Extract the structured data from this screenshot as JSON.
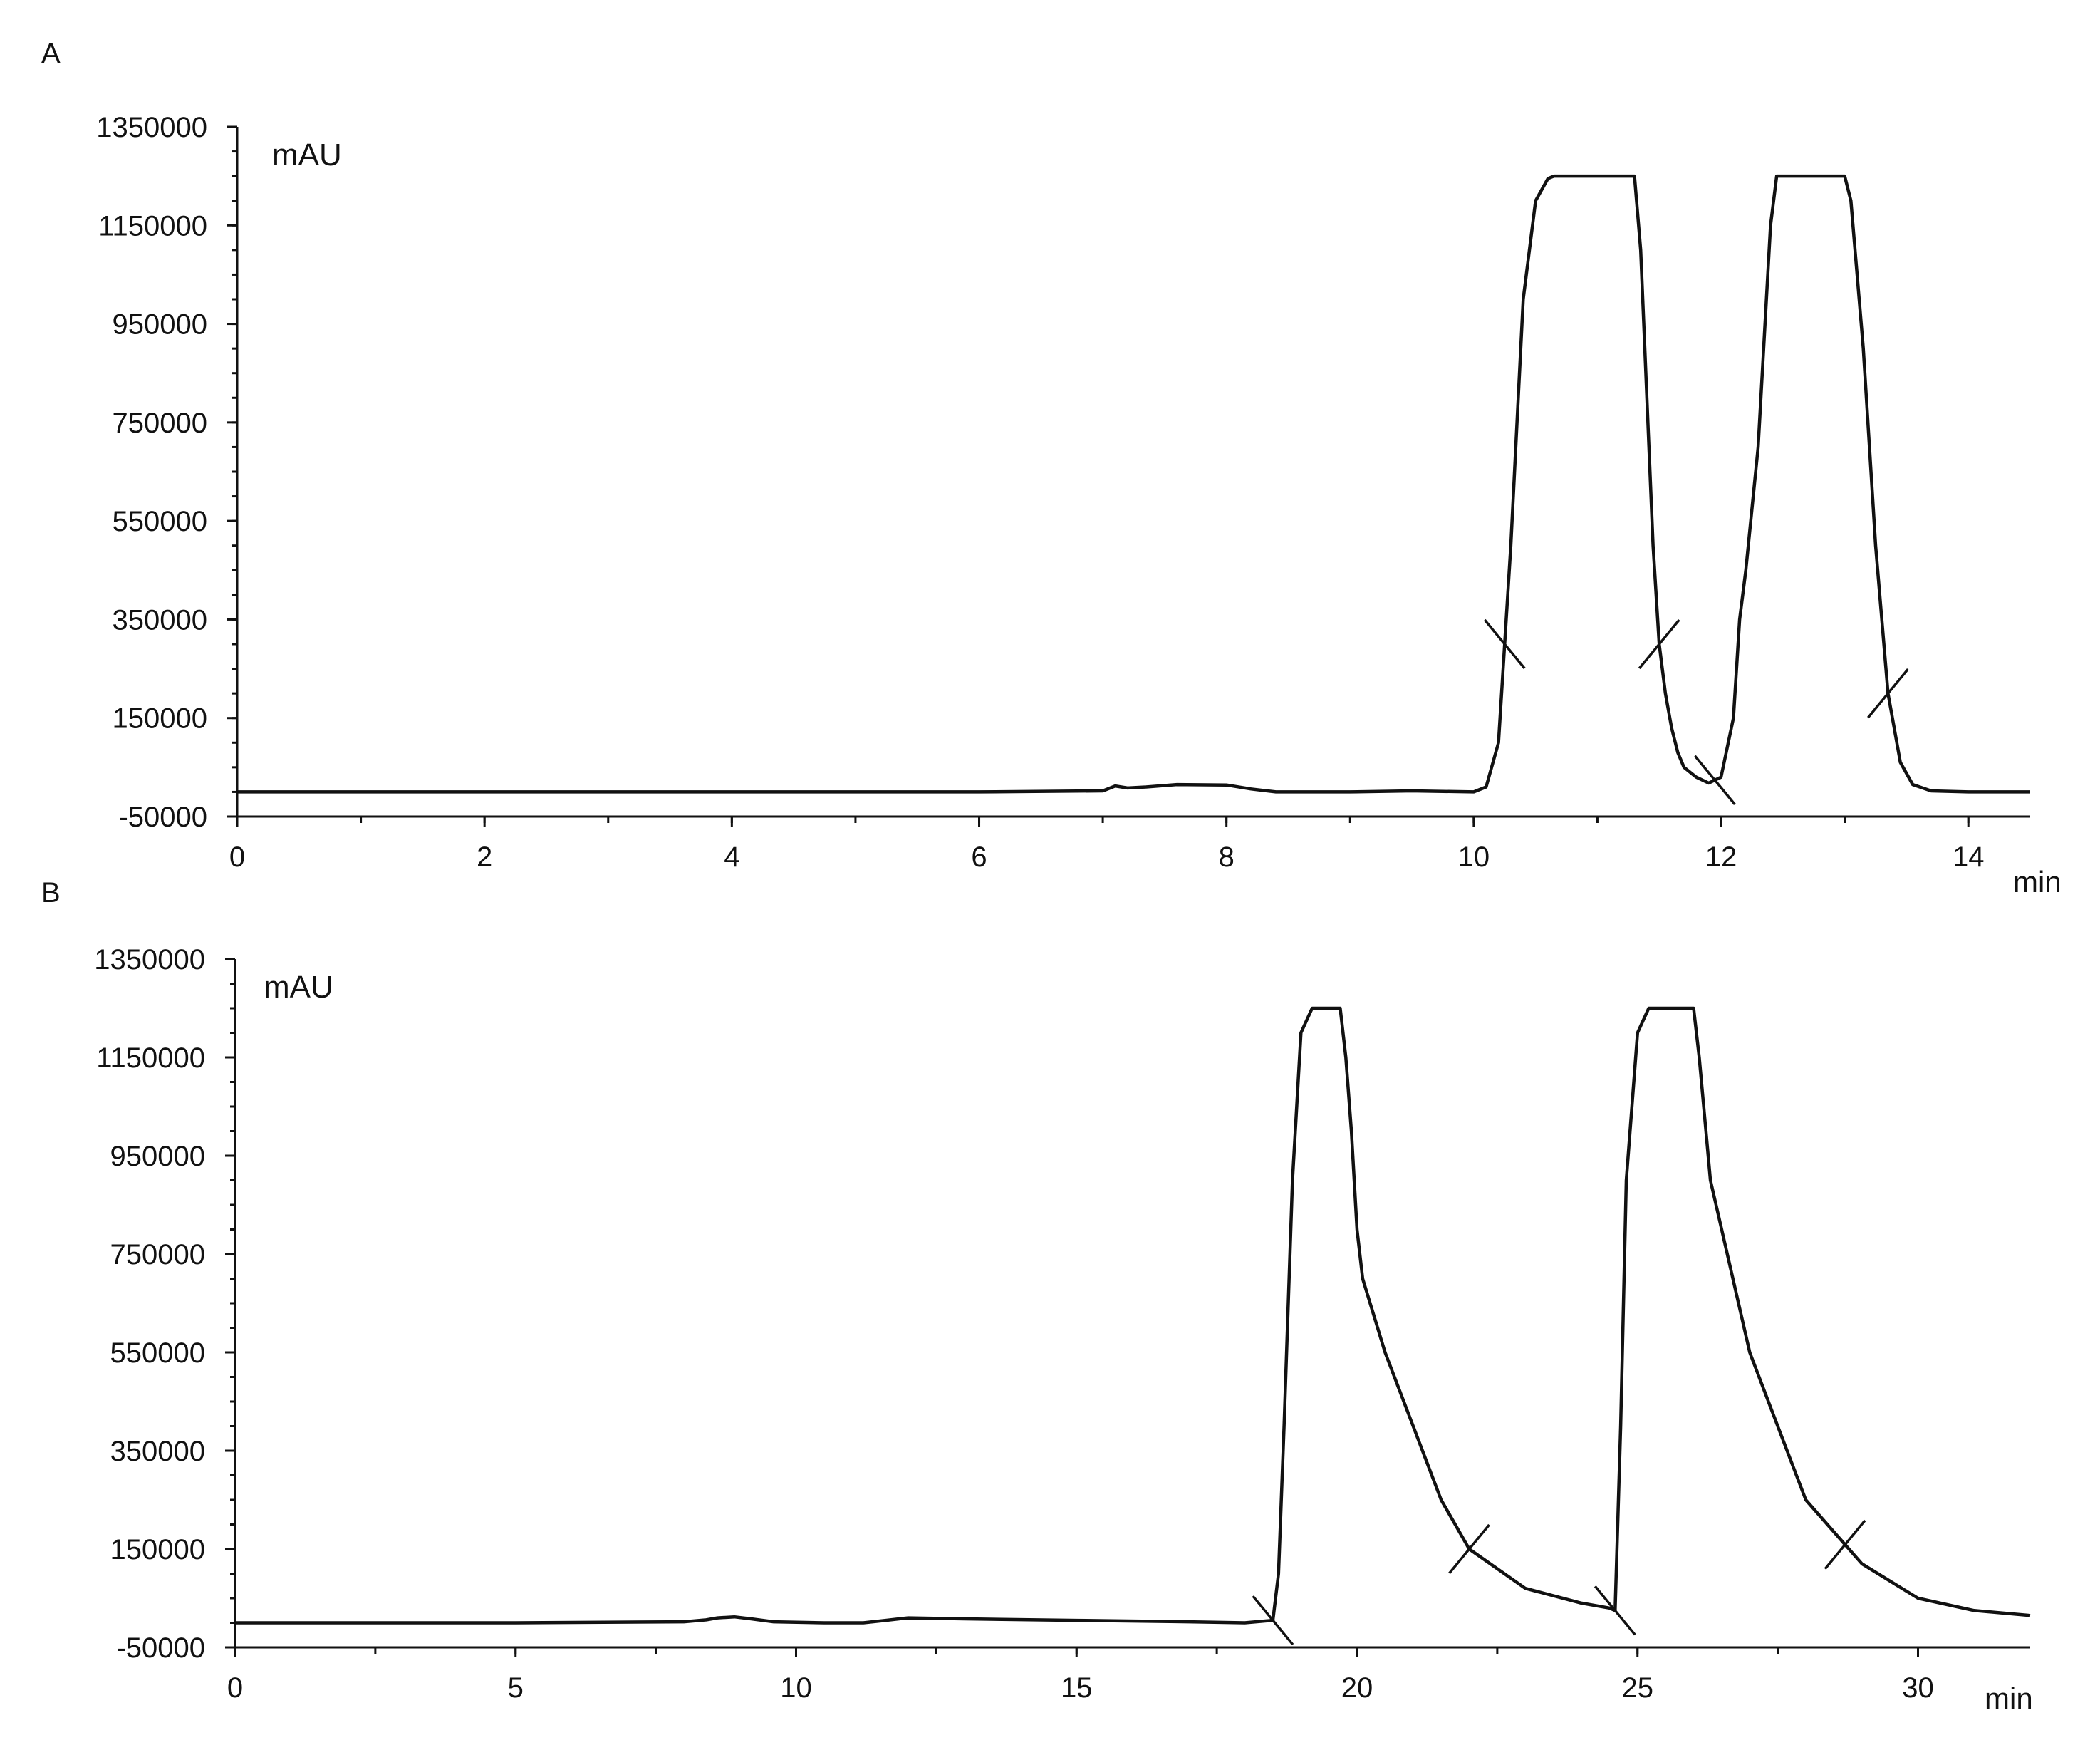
{
  "chart_data": [
    {
      "type": "line",
      "panel_label": "A",
      "ylabel": "mAU",
      "xlabel": "min",
      "xlim": [
        0,
        14.5
      ],
      "ylim": [
        -50000,
        1350000
      ],
      "x_ticks": [
        0,
        2,
        4,
        6,
        8,
        10,
        12,
        14
      ],
      "x_minor_step": 1,
      "y_ticks": [
        -50000,
        150000,
        350000,
        550000,
        750000,
        950000,
        1150000,
        1350000
      ],
      "y_minor_step": 50000,
      "series": [
        {
          "x": [
            0,
            2,
            4,
            6,
            7.0,
            7.1,
            7.2,
            7.35,
            7.6,
            8.0,
            8.2,
            8.4,
            9.0,
            9.5,
            10.0,
            10.1,
            10.2,
            10.3,
            10.4,
            10.5,
            10.6,
            10.65,
            11.0,
            11.3,
            11.35,
            11.4,
            11.45,
            11.5,
            11.55,
            11.6,
            11.65,
            11.7,
            11.8,
            11.9,
            12.0,
            12.1,
            12.15,
            12.2,
            12.3,
            12.4,
            12.45,
            13.0,
            13.05,
            13.15,
            13.25,
            13.35,
            13.45,
            13.55,
            13.7,
            14.0,
            14.5
          ],
          "y": [
            0,
            0,
            0,
            0,
            2000,
            12000,
            8000,
            10000,
            15000,
            14000,
            6000,
            0,
            0,
            2000,
            0,
            10000,
            100000,
            500000,
            1000000,
            1200000,
            1245000,
            1250000,
            1250000,
            1250000,
            1100000,
            800000,
            500000,
            300000,
            200000,
            130000,
            80000,
            50000,
            30000,
            18000,
            30000,
            150000,
            350000,
            450000,
            700000,
            1150000,
            1250000,
            1250000,
            1200000,
            900000,
            500000,
            200000,
            60000,
            15000,
            2000,
            0,
            0
          ]
        }
      ],
      "integration_markers_x": [
        10.25,
        11.5,
        11.95,
        13.35
      ]
    },
    {
      "type": "line",
      "panel_label": "B",
      "ylabel": "mAU",
      "xlabel": "min",
      "xlim": [
        0,
        32
      ],
      "ylim": [
        -50000,
        1350000
      ],
      "x_ticks": [
        0,
        5,
        10,
        15,
        20,
        25,
        30
      ],
      "x_minor_step": 2.5,
      "y_ticks": [
        -50000,
        150000,
        350000,
        550000,
        750000,
        950000,
        1150000,
        1350000
      ],
      "y_minor_step": 50000,
      "series": [
        {
          "x": [
            0,
            5,
            8,
            8.4,
            8.6,
            8.9,
            9.2,
            9.6,
            10.5,
            11.2,
            11.6,
            12.0,
            13.0,
            15.0,
            17.0,
            18.0,
            18.5,
            18.6,
            18.7,
            18.85,
            19.0,
            19.2,
            19.3,
            19.7,
            19.8,
            19.9,
            20.0,
            20.1,
            20.5,
            21.0,
            21.5,
            22.0,
            23.0,
            24.0,
            24.5,
            24.6,
            24.7,
            24.8,
            25.0,
            25.2,
            25.3,
            26.0,
            26.1,
            26.3,
            26.5,
            27.0,
            27.5,
            28.0,
            29.0,
            30.0,
            31.0,
            32.0
          ],
          "y": [
            0,
            0,
            2000,
            6000,
            10000,
            12000,
            8000,
            2000,
            0,
            0,
            5000,
            10000,
            8000,
            5000,
            2000,
            0,
            5000,
            100000,
            400000,
            900000,
            1200000,
            1250000,
            1250000,
            1250000,
            1150000,
            1000000,
            800000,
            700000,
            550000,
            400000,
            250000,
            150000,
            70000,
            40000,
            30000,
            25000,
            400000,
            900000,
            1200000,
            1250000,
            1250000,
            1250000,
            1150000,
            900000,
            800000,
            550000,
            400000,
            250000,
            120000,
            50000,
            25000,
            15000
          ]
        }
      ],
      "integration_markers_x": [
        18.5,
        22.0,
        24.6,
        28.7
      ]
    }
  ]
}
